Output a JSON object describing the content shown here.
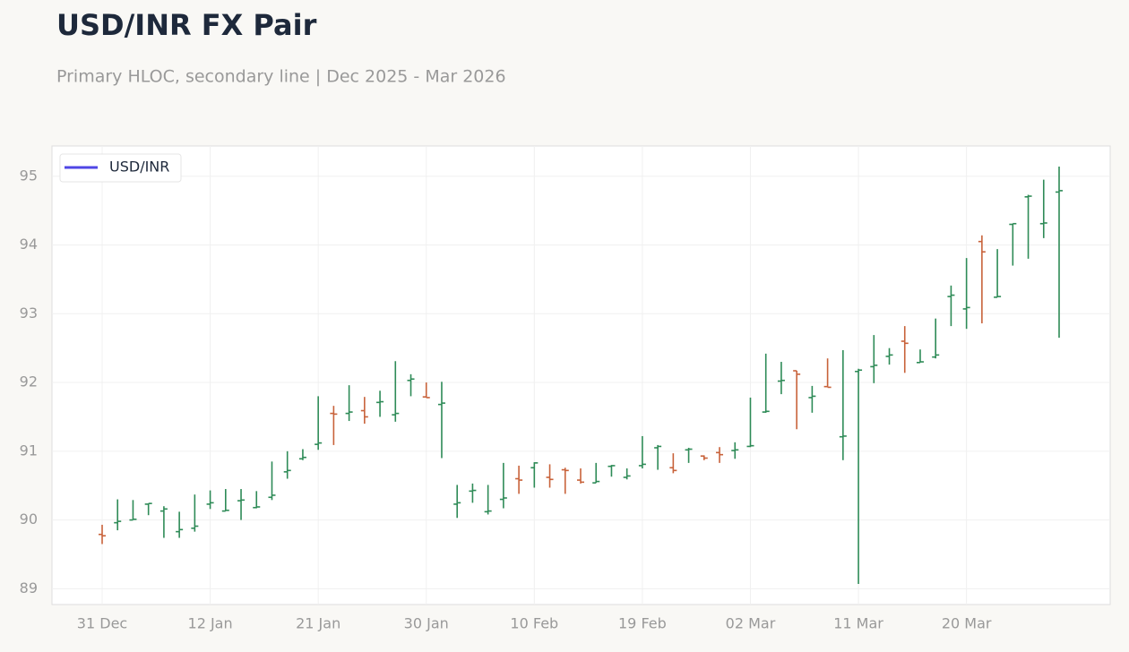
{
  "chart_data": {
    "type": "ohlc",
    "title": "USD/INR FX Pair",
    "subtitle": "Primary HLOC, secondary line | Dec 2025 - Mar 2026",
    "categories": [
      "31 Dec",
      null,
      null,
      null,
      null,
      null,
      null,
      "12 Jan",
      null,
      null,
      null,
      null,
      null,
      null,
      "21 Jan",
      null,
      null,
      null,
      null,
      null,
      null,
      "30 Jan",
      null,
      null,
      null,
      null,
      null,
      null,
      "10 Feb",
      null,
      null,
      null,
      null,
      null,
      null,
      "19 Feb",
      null,
      null,
      null,
      null,
      null,
      null,
      "02 Mar",
      null,
      null,
      null,
      null,
      null,
      null,
      "11 Mar",
      null,
      null,
      null,
      null,
      null,
      null,
      "20 Mar",
      null,
      null,
      null,
      null,
      null,
      null
    ],
    "series": [
      {
        "name": "USD/INR",
        "color": "#4f46e5",
        "open": [
          89.79,
          89.96,
          90.0,
          90.23,
          90.13,
          89.83,
          89.88,
          90.23,
          90.13,
          90.28,
          90.18,
          90.33,
          90.7,
          90.89,
          91.1,
          91.55,
          91.55,
          91.59,
          91.71,
          91.53,
          92.03,
          91.79,
          91.68,
          90.23,
          90.42,
          90.12,
          90.3,
          90.6,
          90.76,
          90.62,
          90.73,
          90.58,
          90.54,
          90.78,
          90.62,
          90.79,
          91.05,
          90.76,
          91.02,
          90.93,
          90.98,
          91.01,
          91.07,
          91.57,
          92.02,
          92.17,
          91.78,
          91.94,
          91.21,
          92.16,
          92.23,
          92.38,
          92.6,
          92.29,
          92.37,
          93.25,
          93.07,
          94.05,
          93.24,
          94.3,
          94.7,
          94.31,
          94.77
        ],
        "high": [
          89.93,
          90.3,
          90.29,
          90.24,
          90.2,
          90.12,
          90.37,
          90.43,
          90.45,
          90.45,
          90.42,
          90.85,
          91.0,
          91.03,
          91.8,
          91.66,
          91.96,
          91.79,
          91.88,
          92.31,
          92.12,
          92.0,
          92.01,
          90.51,
          90.53,
          90.51,
          90.83,
          90.79,
          90.84,
          90.81,
          90.76,
          90.75,
          90.83,
          90.8,
          90.75,
          91.22,
          91.09,
          90.97,
          91.05,
          90.94,
          91.06,
          91.13,
          91.78,
          92.42,
          92.3,
          92.17,
          91.95,
          92.35,
          92.47,
          92.2,
          92.69,
          92.5,
          92.82,
          92.48,
          92.93,
          93.41,
          93.81,
          94.14,
          93.94,
          94.31,
          94.73,
          94.95,
          95.14
        ],
        "low": [
          89.65,
          89.85,
          90.0,
          90.07,
          89.74,
          89.74,
          89.83,
          90.16,
          90.13,
          90.0,
          90.17,
          90.29,
          90.6,
          90.87,
          91.02,
          91.09,
          91.44,
          91.4,
          91.5,
          91.43,
          91.8,
          91.78,
          90.9,
          90.03,
          90.25,
          90.08,
          90.17,
          90.38,
          90.47,
          90.47,
          90.38,
          90.53,
          90.54,
          90.63,
          90.59,
          90.75,
          90.73,
          90.68,
          90.83,
          90.87,
          90.83,
          90.89,
          91.06,
          91.56,
          91.83,
          91.32,
          91.56,
          91.93,
          90.87,
          89.07,
          91.99,
          92.26,
          92.14,
          92.29,
          92.35,
          92.82,
          92.78,
          92.86,
          93.24,
          93.7,
          93.8,
          94.1,
          92.65
        ],
        "close": [
          89.77,
          89.98,
          90.01,
          90.24,
          90.16,
          89.86,
          89.91,
          90.25,
          90.14,
          90.29,
          90.19,
          90.36,
          90.72,
          90.91,
          91.12,
          91.54,
          91.57,
          91.5,
          91.72,
          91.55,
          92.05,
          91.78,
          91.7,
          90.25,
          90.43,
          90.13,
          90.32,
          90.58,
          90.83,
          90.59,
          90.72,
          90.55,
          90.56,
          90.79,
          90.64,
          90.81,
          91.07,
          90.72,
          91.03,
          90.9,
          90.95,
          91.02,
          91.08,
          91.58,
          92.03,
          92.12,
          91.8,
          91.93,
          91.22,
          92.18,
          92.25,
          92.4,
          92.57,
          92.3,
          92.4,
          93.27,
          93.09,
          93.9,
          93.25,
          94.31,
          94.71,
          94.32,
          94.79
        ]
      }
    ],
    "up_color": "#2e8b57",
    "down_color": "#c8623a",
    "ylim": [
      88.77,
      95.44
    ],
    "yticks": [
      89,
      90,
      91,
      92,
      93,
      94,
      95
    ],
    "grid": true,
    "legend": "upper left"
  }
}
